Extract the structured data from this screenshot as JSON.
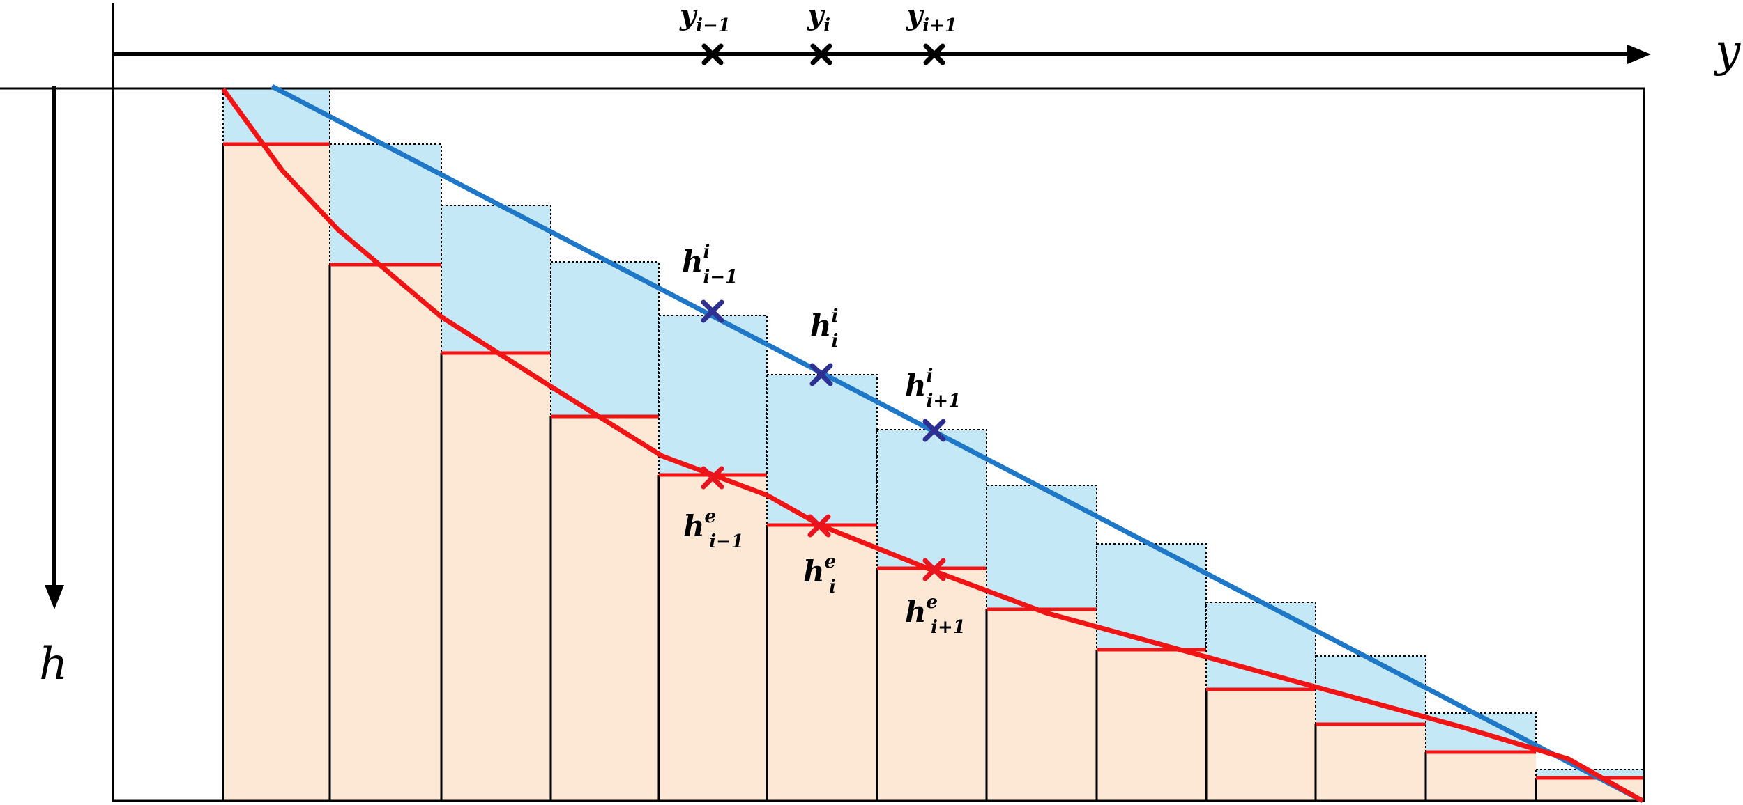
{
  "axes": {
    "y_axis_label": "y",
    "h_axis_label": "h"
  },
  "y_markers": [
    {
      "base": "y",
      "sub": "i−1"
    },
    {
      "base": "y",
      "sub": "i"
    },
    {
      "base": "y",
      "sub": "i+1"
    }
  ],
  "interface_labels": [
    {
      "base": "h",
      "sup": "i",
      "sub": "i−1"
    },
    {
      "base": "h",
      "sup": "i",
      "sub": "i"
    },
    {
      "base": "h",
      "sup": "i",
      "sub": "i+1"
    }
  ],
  "erosion_labels": [
    {
      "base": "h",
      "sup": "e",
      "sub": "i−1"
    },
    {
      "base": "h",
      "sup": "e",
      "sub": "i"
    },
    {
      "base": "h",
      "sup": "e",
      "sub": "i+1"
    }
  ],
  "colors": {
    "blue_line": "#1F77C8",
    "red_line": "#F01414",
    "upper_fill": "#C5E8F7",
    "lower_fill": "#FDE8D6",
    "cross_blue": "#2E3191",
    "cross_red": "#E8141E",
    "axis": "#000000"
  }
}
